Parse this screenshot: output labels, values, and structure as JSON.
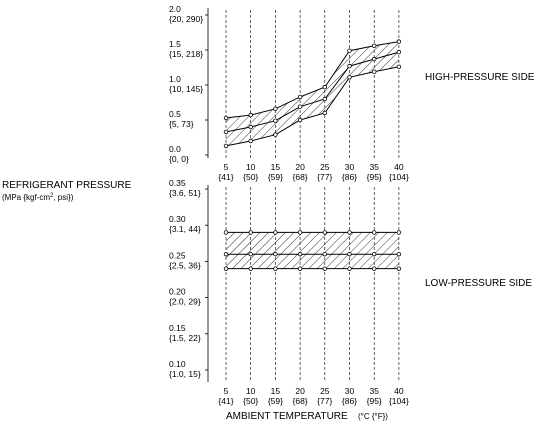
{
  "chart_data": [
    {
      "type": "area",
      "title": "",
      "label": "HIGH-PRESSURE SIDE",
      "x": [
        5,
        10,
        15,
        20,
        25,
        30,
        35,
        40
      ],
      "x_tick_labels": [
        [
          "5",
          "{41}"
        ],
        [
          "10",
          "{50}"
        ],
        [
          "15",
          "{59}"
        ],
        [
          "20",
          "{68}"
        ],
        [
          "25",
          "{77}"
        ],
        [
          "30",
          "{86}"
        ],
        [
          "35",
          "{95}"
        ],
        [
          "40",
          "{104}"
        ]
      ],
      "y_ticks": [
        0.0,
        0.5,
        1.0,
        1.5,
        2.0
      ],
      "y_tick_labels": [
        [
          "0.0",
          "{0, 0}"
        ],
        [
          "0.5",
          "{5, 73}"
        ],
        [
          "1.0",
          "{10, 145}"
        ],
        [
          "1.5",
          "{15, 218}"
        ],
        [
          "2.0",
          "{20, 290}"
        ]
      ],
      "ylim": [
        0.0,
        2.0
      ],
      "grid": "vertical dashed",
      "series": [
        {
          "values": [
            0.53,
            0.57,
            0.66,
            0.83,
            0.97,
            1.49,
            1.56,
            1.62
          ]
        },
        {
          "values": [
            0.33,
            0.4,
            0.49,
            0.69,
            0.8,
            1.27,
            1.37,
            1.47
          ]
        },
        {
          "values": [
            0.13,
            0.2,
            0.29,
            0.5,
            0.6,
            1.11,
            1.19,
            1.26
          ]
        }
      ]
    },
    {
      "type": "area",
      "title": "",
      "label": "LOW-PRESSURE SIDE",
      "x": [
        5,
        10,
        15,
        20,
        25,
        30,
        35,
        40
      ],
      "x_tick_labels": [
        [
          "5",
          "{41}"
        ],
        [
          "10",
          "{50}"
        ],
        [
          "15",
          "{59}"
        ],
        [
          "20",
          "{68}"
        ],
        [
          "25",
          "{77}"
        ],
        [
          "30",
          "{86}"
        ],
        [
          "35",
          "{95}"
        ],
        [
          "40",
          "{104}"
        ]
      ],
      "y_ticks": [
        0.1,
        0.15,
        0.2,
        0.25,
        0.3,
        0.35
      ],
      "y_tick_labels": [
        [
          "0.10",
          "{1.0, 15}"
        ],
        [
          "0.15",
          "{1.5, 22}"
        ],
        [
          "0.20",
          "{2.0, 29}"
        ],
        [
          "0.25",
          "{2.5, 36}"
        ],
        [
          "0.30",
          "{3.1, 44}"
        ],
        [
          "0.35",
          "{3.6, 51}"
        ]
      ],
      "ylim": [
        0.1,
        0.35
      ],
      "grid": "vertical dashed",
      "series": [
        {
          "values": [
            0.29,
            0.29,
            0.29,
            0.29,
            0.29,
            0.29,
            0.29,
            0.29
          ]
        },
        {
          "values": [
            0.26,
            0.26,
            0.26,
            0.26,
            0.26,
            0.26,
            0.26,
            0.26
          ]
        },
        {
          "values": [
            0.24,
            0.24,
            0.24,
            0.24,
            0.24,
            0.24,
            0.24,
            0.24
          ]
        }
      ]
    }
  ],
  "y_axis_label": "REFRIGERANT PRESSURE",
  "y_axis_unit": "(MPa {kgf-cm",
  "y_axis_unit_sup": "2",
  "y_axis_unit_end": ", psi})",
  "x_axis_label": "AMBIENT TEMPERATURE",
  "x_axis_unit": "(°C {°F})"
}
